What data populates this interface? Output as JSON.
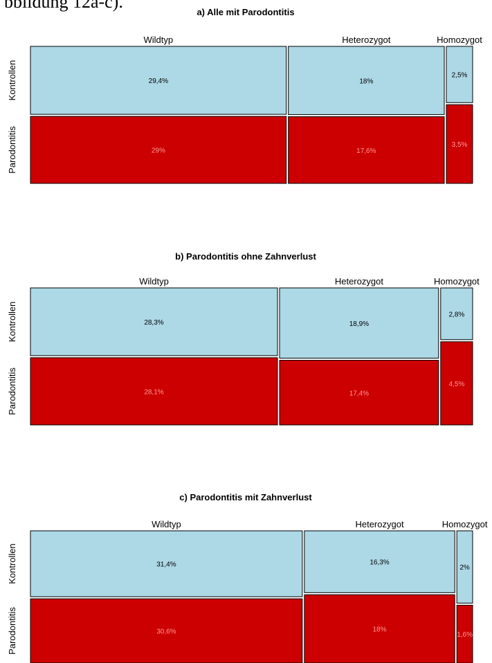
{
  "caption": "bbildung 12a-c).",
  "colors": {
    "kontrollen": "#add8e6",
    "parodontitis": "#cc0000",
    "border": "#000000",
    "label_on_control": "#000000",
    "label_on_case": "#ff9999"
  },
  "chart_data": [
    {
      "type": "mosaic",
      "title": "a) Alle mit Parodontitis",
      "columns": [
        "Wildtyp",
        "Heterozygot",
        "Homozygot"
      ],
      "rows": [
        "Kontrollen",
        "Parodontitis"
      ],
      "values": {
        "Kontrollen": [
          29.4,
          18,
          2.5
        ],
        "Parodontitis": [
          29,
          17.6,
          3.5
        ]
      },
      "labels": {
        "Kontrollen": [
          "29,4%",
          "18%",
          "2,5%"
        ],
        "Parodontitis": [
          "29%",
          "17,6%",
          "3,5%"
        ]
      },
      "unit": "%"
    },
    {
      "type": "mosaic",
      "title": "b) Parodontitis ohne Zahnverlust",
      "columns": [
        "Wildtyp",
        "Heterozygot",
        "Homozygot"
      ],
      "rows": [
        "Kontrollen",
        "Parodontitis"
      ],
      "values": {
        "Kontrollen": [
          28.3,
          18.9,
          2.8
        ],
        "Parodontitis": [
          28.1,
          17.4,
          4.5
        ]
      },
      "labels": {
        "Kontrollen": [
          "28,3%",
          "18,9%",
          "2,8%"
        ],
        "Parodontitis": [
          "28,1%",
          "17,4%",
          "4,5%"
        ]
      },
      "unit": "%"
    },
    {
      "type": "mosaic",
      "title": "c) Parodontitis mit Zahnverlust",
      "columns": [
        "Wildtyp",
        "Heterozygot",
        "Homozygot"
      ],
      "rows": [
        "Kontrollen",
        "Parodontitis"
      ],
      "values": {
        "Kontrollen": [
          31.4,
          16.3,
          2
        ],
        "Parodontitis": [
          30.6,
          18,
          1.6
        ]
      },
      "labels": {
        "Kontrollen": [
          "31,4%",
          "16,3%",
          "2%"
        ],
        "Parodontitis": [
          "30,6%",
          "18%",
          "1,6%"
        ]
      },
      "unit": "%"
    }
  ]
}
